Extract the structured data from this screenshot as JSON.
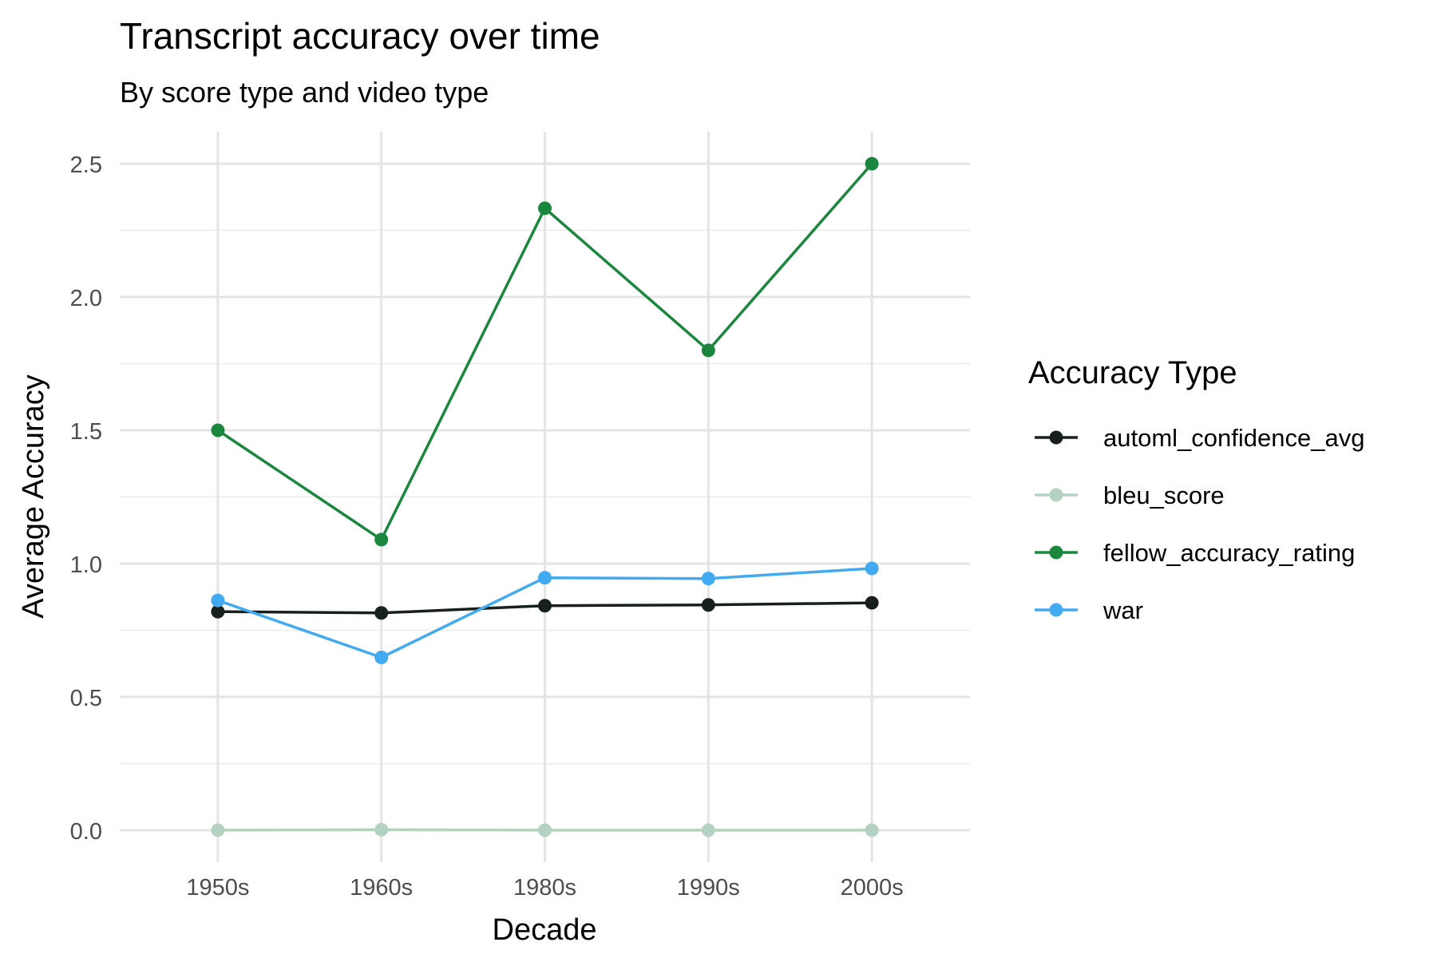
{
  "chart_data": {
    "type": "line",
    "title": "Transcript accuracy over time",
    "subtitle": "By score type and video type",
    "xlabel": "Decade",
    "ylabel": "Average Accuracy",
    "categories": [
      "1950s",
      "1960s",
      "1980s",
      "1990s",
      "2000s"
    ],
    "ylim": [
      -0.12,
      2.62
    ],
    "yticks": [
      0.0,
      0.5,
      1.0,
      1.5,
      2.0,
      2.5
    ],
    "ytick_labels": [
      "0.0",
      "0.5",
      "1.0",
      "1.5",
      "2.0",
      "2.5"
    ],
    "grid": true,
    "legend_title": "Accuracy Type",
    "legend_position": "right",
    "series": [
      {
        "name": "automl_confidence_avg",
        "color": "#17201c",
        "values": [
          0.82,
          0.815,
          0.842,
          0.845,
          0.853
        ]
      },
      {
        "name": "bleu_score",
        "color": "#b4d2c1",
        "values": [
          0.0,
          0.002,
          0.0,
          0.0,
          0.0
        ]
      },
      {
        "name": "fellow_accuracy_rating",
        "color": "#1b873e",
        "values": [
          1.5,
          1.09,
          2.333,
          1.8,
          2.5
        ]
      },
      {
        "name": "war",
        "color": "#42aaf0",
        "values": [
          0.862,
          0.648,
          0.947,
          0.944,
          0.982
        ]
      }
    ]
  }
}
